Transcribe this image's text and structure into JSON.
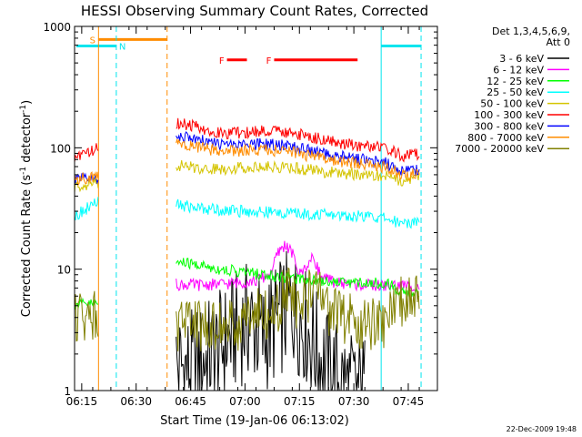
{
  "chart_data": {
    "type": "line",
    "title": "HESSI Observing Summary Count Rates, Corrected",
    "xlabel": "Start Time (19-Jan-06 06:13:02)",
    "ylabel": "Corrected Count Rate (s",
    "ylabel_sup1": "-1",
    "ylabel_mid": " detector",
    "ylabel_sup2": "-1",
    "ylabel_end": ")",
    "x_unit": "minutes since 06:13:02",
    "xlim": [
      0,
      100
    ],
    "ylim": [
      1,
      1000
    ],
    "yscale": "log",
    "x_tick_labels": [
      "06:15",
      "06:30",
      "06:45",
      "07:00",
      "07:15",
      "07:30",
      "07:45"
    ],
    "x_tick_values": [
      1.97,
      16.97,
      31.97,
      46.97,
      61.97,
      76.97,
      91.97
    ],
    "y_tick_labels": [
      "1",
      "10",
      "100",
      "1000"
    ],
    "y_tick_values": [
      1,
      10,
      100,
      1000
    ],
    "legend_header": [
      "Det 1,3,4,5,6,9,",
      "Att 0"
    ],
    "legend_position": "right",
    "footer_date": "22-Dec-2009 19:48",
    "flags": [
      {
        "label": "S",
        "color": "#ff8c00",
        "x_start": 6.5,
        "x_end": 25.5,
        "y": 780
      },
      {
        "label": "N",
        "color": "#00e5ee",
        "x_start": 0.5,
        "x_end": 11.5,
        "y": 690
      },
      {
        "label": "N",
        "color": "#00e5ee",
        "x_start": 84.5,
        "x_end": 95.5,
        "y": 690
      },
      {
        "label": "F",
        "color": "#ff0000",
        "x_start": 42.0,
        "x_end": 47.5,
        "y": 530
      },
      {
        "label": "F",
        "color": "#ff0000",
        "x_start": 55.0,
        "x_end": 78.0,
        "y": 530
      }
    ],
    "vlines": [
      {
        "x": 6.6,
        "color": "#ff8c00",
        "dash": false
      },
      {
        "x": 11.5,
        "color": "#00e5ee",
        "dash": true
      },
      {
        "x": 25.5,
        "color": "#ff8c00",
        "dash": true
      },
      {
        "x": 84.5,
        "color": "#00e5ee",
        "dash": false
      },
      {
        "x": 95.5,
        "color": "#00e5ee",
        "dash": true
      }
    ],
    "series": [
      {
        "name": "3 - 6 keV",
        "color": "#000000",
        "segments": [
          {
            "x": [
              28,
              32,
              36,
              40,
              44,
              48,
              52,
              56,
              60,
              64,
              68,
              72,
              76,
              80
            ],
            "y": [
              1.6,
              1.5,
              1.8,
              2.2,
              3.0,
              3.8,
              2.7,
              3.8,
              5.0,
              3.2,
              1.8,
              1.3,
              1.05,
              1.0
            ]
          }
        ]
      },
      {
        "name": "6 - 12 keV",
        "color": "#ff00ff",
        "segments": [
          {
            "x": [
              28,
              34,
              40,
              46,
              50,
              54,
              56,
              58,
              60,
              62,
              64,
              66,
              68,
              72,
              76,
              80,
              84,
              88,
              95
            ],
            "y": [
              7.5,
              7.4,
              7.5,
              7.8,
              8.0,
              9.2,
              13.5,
              16.0,
              13.5,
              9.0,
              10.8,
              12.5,
              8.5,
              7.8,
              7.5,
              7.4,
              7.3,
              7.3,
              7.3
            ]
          }
        ]
      },
      {
        "name": "12 - 25 keV",
        "color": "#00ff00",
        "segments": [
          {
            "x": [
              -2.0,
              6.5
            ],
            "y": [
              5.0,
              5.2
            ]
          },
          {
            "x": [
              28,
              34,
              40,
              46,
              52,
              58,
              64,
              70,
              76,
              82,
              86,
              90,
              95
            ],
            "y": [
              11.5,
              10.8,
              10.0,
              9.5,
              9.0,
              8.6,
              8.3,
              8.0,
              7.8,
              7.7,
              7.7,
              6.5,
              6.2
            ]
          }
        ]
      },
      {
        "name": "25 - 50 keV",
        "color": "#00ffff",
        "segments": [
          {
            "x": [
              -2.0,
              2.0,
              6.5
            ],
            "y": [
              25,
              30,
              36
            ]
          },
          {
            "x": [
              28,
              34,
              40,
              46,
              52,
              58,
              64,
              70,
              76,
              82,
              86,
              90,
              95
            ],
            "y": [
              34,
              32,
              31,
              30,
              29.5,
              29,
              28.5,
              28,
              27.5,
              27,
              26,
              24,
              25
            ]
          }
        ]
      },
      {
        "name": "50 - 100 keV",
        "color": "#d4c400",
        "segments": [
          {
            "x": [
              -2.0,
              2.0,
              6.5
            ],
            "y": [
              46,
              49,
              52
            ]
          },
          {
            "x": [
              28,
              34,
              40,
              46,
              52,
              58,
              64,
              70,
              76,
              82,
              86,
              90,
              95
            ],
            "y": [
              72,
              68,
              67,
              69,
              70,
              69,
              66,
              63,
              61,
              59,
              58,
              54,
              57
            ]
          }
        ]
      },
      {
        "name": "100 - 300 keV",
        "color": "#ff0000",
        "segments": [
          {
            "x": [
              -2.0,
              2.0,
              6.5
            ],
            "y": [
              80,
              88,
              100
            ]
          },
          {
            "x": [
              28,
              34,
              40,
              46,
              52,
              58,
              64,
              70,
              76,
              82,
              86,
              88,
              90,
              95
            ],
            "y": [
              160,
              148,
              132,
              132,
              138,
              136,
              124,
              114,
              106,
              102,
              100,
              92,
              86,
              90
            ]
          }
        ]
      },
      {
        "name": "300 - 800 keV",
        "color": "#0000ff",
        "segments": [
          {
            "x": [
              -2.0,
              2.0,
              6.5
            ],
            "y": [
              53,
              55,
              56
            ]
          },
          {
            "x": [
              28,
              34,
              40,
              46,
              52,
              58,
              64,
              70,
              76,
              82,
              86,
              88,
              90,
              95
            ],
            "y": [
              125,
              116,
              106,
              104,
              108,
              105,
              96,
              88,
              82,
              78,
              76,
              68,
              64,
              66
            ]
          }
        ]
      },
      {
        "name": "800 - 7000 keV",
        "color": "#ff8c00",
        "segments": [
          {
            "x": [
              -2.0,
              2.0,
              6.5
            ],
            "y": [
              53,
              56,
              58
            ]
          },
          {
            "x": [
              28,
              34,
              40,
              46,
              52,
              58,
              64,
              70,
              76,
              82,
              86,
              88,
              90,
              95
            ],
            "y": [
              108,
              101,
              94,
              94,
              97,
              94,
              87,
              80,
              75,
              71,
              69,
              64,
              60,
              61
            ]
          }
        ]
      },
      {
        "name": "7000 - 20000 keV",
        "color": "#808000",
        "segments": [
          {
            "x": [
              -2.0,
              6.5
            ],
            "y": [
              4.2,
              4.2
            ]
          },
          {
            "x": [
              28,
              34,
              40,
              46,
              50,
              54,
              56,
              58,
              60,
              62,
              66,
              70,
              76,
              82,
              86,
              90,
              95
            ],
            "y": [
              3.3,
              3.3,
              3.4,
              3.5,
              5.5,
              3.6,
              5.0,
              6.5,
              6.0,
              4.5,
              7.0,
              4.5,
              3.8,
              3.5,
              3.6,
              5.5,
              5.8
            ]
          }
        ]
      }
    ]
  }
}
